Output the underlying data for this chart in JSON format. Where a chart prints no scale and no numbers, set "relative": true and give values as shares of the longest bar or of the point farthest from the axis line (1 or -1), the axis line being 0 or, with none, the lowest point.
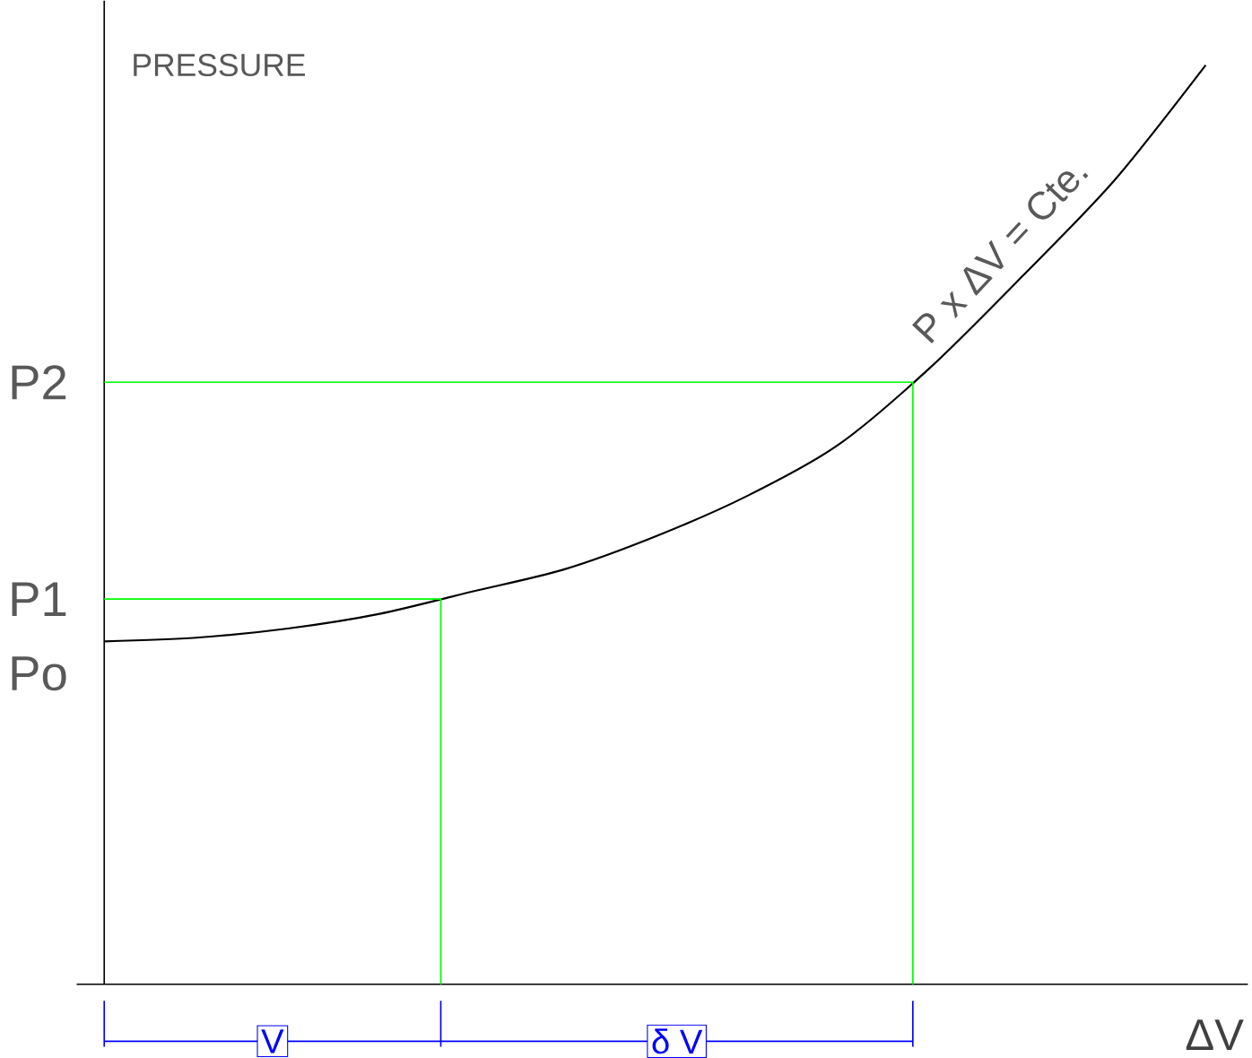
{
  "chart_data": {
    "type": "line",
    "relative": true,
    "xlabel": "ΔV",
    "ylabel": "PRESSURE",
    "categories": [
      null,
      null,
      null,
      null,
      null,
      null,
      null,
      null,
      null,
      null,
      null,
      null,
      null
    ],
    "series": [
      {
        "color": "#000000",
        "values": [
          0.373,
          0.377,
          0.387,
          0.403,
          0.427,
          0.451,
          0.487,
          0.531,
          0.587,
          0.671,
          0.77,
          0.874,
          1.0
        ]
      }
    ],
    "ref_lines": [
      {
        "axis": "y",
        "value": 0.419,
        "label": "P1",
        "color": "#00ff00"
      },
      {
        "axis": "y",
        "value": 0.655,
        "label": "P2",
        "color": "#00ff00"
      }
    ],
    "annotations": [
      "Po",
      "V",
      "δ V",
      "P x ΔV = Cte."
    ],
    "marker": "none",
    "line_style": "solid"
  }
}
